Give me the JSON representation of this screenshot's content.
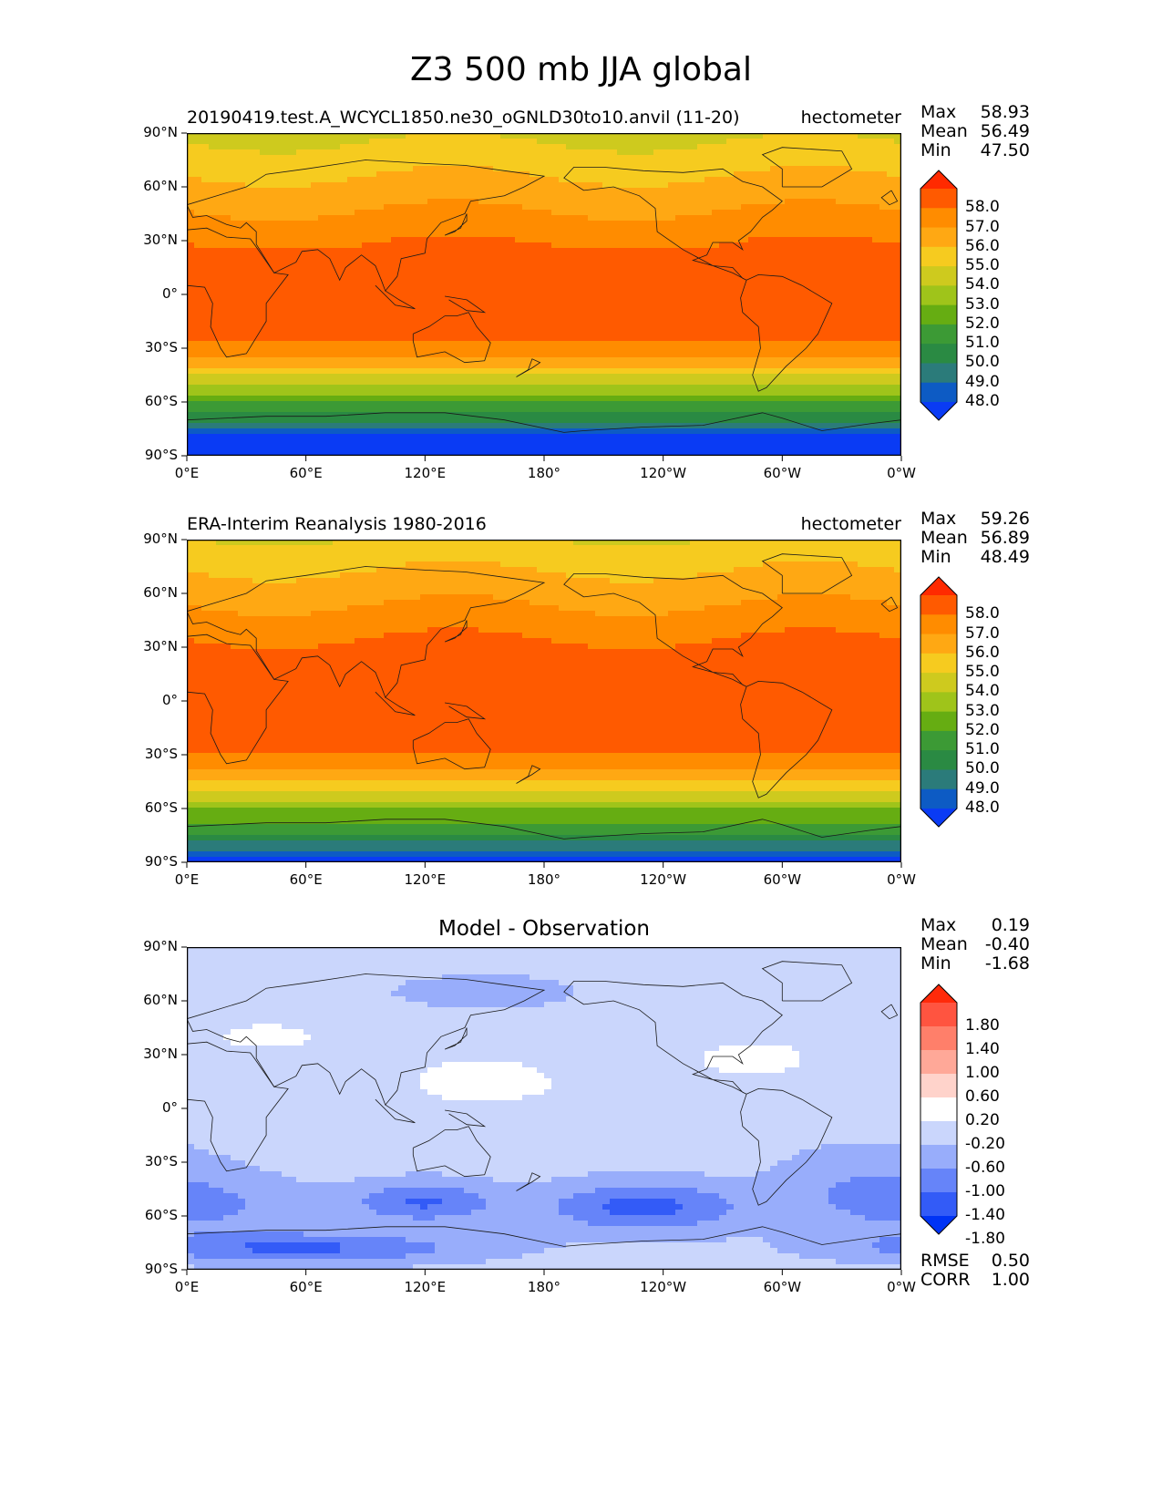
{
  "figure": {
    "title": "Z3 500 mb JJA global"
  },
  "chart_data": [
    {
      "type": "heatmap",
      "title_left": "20190419.test.A_WCYCL1850.ne30_oGNLD30to10.anvil (11-20)",
      "title_right": "hectometer",
      "stats": [
        {
          "label": "Max",
          "value": "58.93"
        },
        {
          "label": "Mean",
          "value": "56.49"
        },
        {
          "label": "Min",
          "value": "47.50"
        }
      ],
      "lat_ticks": [
        "90°N",
        "60°N",
        "30°N",
        "0°",
        "30°S",
        "60°S",
        "90°S"
      ],
      "lon_ticks": [
        "0°E",
        "60°E",
        "120°E",
        "180°",
        "120°W",
        "60°W",
        "0°W"
      ],
      "colorbar": {
        "ticks": [
          "58.0",
          "57.0",
          "56.0",
          "55.0",
          "54.0",
          "53.0",
          "52.0",
          "51.0",
          "50.0",
          "49.0",
          "48.0"
        ],
        "colors": [
          "#ff2a00",
          "#ff5a00",
          "#ff8c00",
          "#ffa813",
          "#f6cb1f",
          "#ceca1e",
          "#9fc41a",
          "#66ad12",
          "#3c9a35",
          "#2a8a43",
          "#2b7b7a",
          "#0d5bc4",
          "#0a3bf4"
        ]
      },
      "field": {
        "mean": 56.49,
        "max": 58.93,
        "min": 47.5,
        "model": "model"
      }
    },
    {
      "type": "heatmap",
      "title_left": "ERA-Interim Reanalysis 1980-2016",
      "title_right": "hectometer",
      "stats": [
        {
          "label": "Max",
          "value": "59.26"
        },
        {
          "label": "Mean",
          "value": "56.89"
        },
        {
          "label": "Min",
          "value": "48.49"
        }
      ],
      "lat_ticks": [
        "90°N",
        "60°N",
        "30°N",
        "0°",
        "30°S",
        "60°S",
        "90°S"
      ],
      "lon_ticks": [
        "0°E",
        "60°E",
        "120°E",
        "180°",
        "120°W",
        "60°W",
        "0°W"
      ],
      "colorbar": {
        "ticks": [
          "58.0",
          "57.0",
          "56.0",
          "55.0",
          "54.0",
          "53.0",
          "52.0",
          "51.0",
          "50.0",
          "49.0",
          "48.0"
        ],
        "colors": [
          "#ff2a00",
          "#ff5a00",
          "#ff8c00",
          "#ffa813",
          "#f6cb1f",
          "#ceca1e",
          "#9fc41a",
          "#66ad12",
          "#3c9a35",
          "#2a8a43",
          "#2b7b7a",
          "#0d5bc4",
          "#0a3bf4"
        ]
      },
      "field": {
        "mean": 56.89,
        "max": 59.26,
        "min": 48.49,
        "model": "obs"
      }
    },
    {
      "type": "heatmap",
      "title_center": "Model - Observation",
      "stats": [
        {
          "label": "Max",
          "value": "0.19"
        },
        {
          "label": "Mean",
          "value": "-0.40"
        },
        {
          "label": "Min",
          "value": "-1.68"
        }
      ],
      "extra_stats": [
        {
          "label": "RMSE",
          "value": "0.50"
        },
        {
          "label": "CORR",
          "value": "1.00"
        }
      ],
      "lat_ticks": [
        "90°N",
        "60°N",
        "30°N",
        "0°",
        "30°S",
        "60°S",
        "90°S"
      ],
      "lon_ticks": [
        "0°E",
        "60°E",
        "120°E",
        "180°",
        "120°W",
        "60°W",
        "0°W"
      ],
      "colorbar": {
        "ticks": [
          "1.80",
          "1.40",
          "1.00",
          "0.60",
          "0.20",
          "-0.20",
          "-0.60",
          "-1.00",
          "-1.40",
          "-1.80"
        ],
        "colors": [
          "#ff2a0a",
          "#ff5440",
          "#ff7f6a",
          "#ffa898",
          "#ffd3cb",
          "#ffffff",
          "#cad6fc",
          "#98adfb",
          "#6684f9",
          "#335bf7",
          "#0033f5"
        ]
      },
      "field": {
        "mean": -0.4,
        "max": 0.19,
        "min": -1.68,
        "model": "diff"
      }
    }
  ]
}
